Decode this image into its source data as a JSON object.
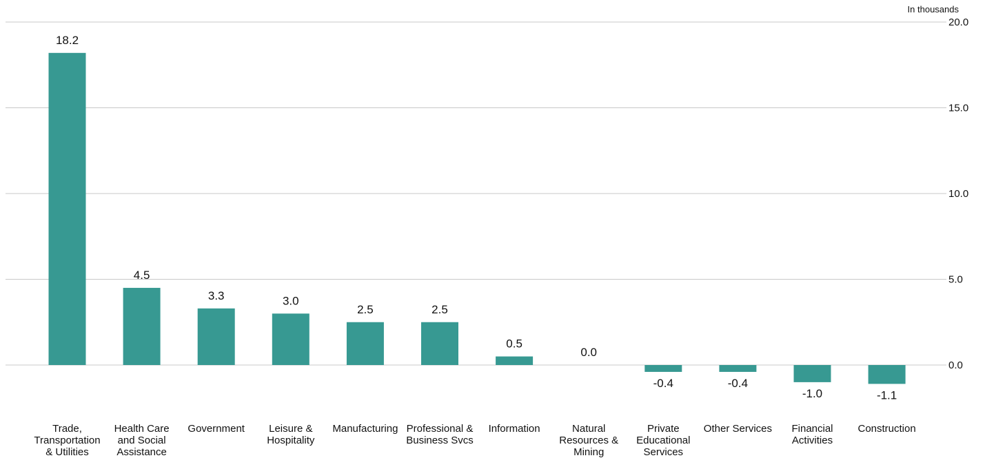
{
  "chart_data": {
    "type": "bar",
    "unit_label": "In thousands",
    "categories": [
      "Trade, Transportation & Utilities",
      "Health Care and Social Assistance",
      "Government",
      "Leisure & Hospitality",
      "Manufacturing",
      "Professional & Business Svcs",
      "Information",
      "Natural Resources & Mining",
      "Private Educational Services",
      "Other Services",
      "Financial Activities",
      "Construction"
    ],
    "category_lines": [
      [
        "Trade,",
        "Transportation",
        "& Utilities"
      ],
      [
        "Health Care",
        "and Social",
        "Assistance"
      ],
      [
        "Government"
      ],
      [
        "Leisure &",
        "Hospitality"
      ],
      [
        "Manufacturing"
      ],
      [
        "Professional &",
        "Business Svcs"
      ],
      [
        "Information"
      ],
      [
        "Natural",
        "Resources &",
        "Mining"
      ],
      [
        "Private",
        "Educational",
        "Services"
      ],
      [
        "Other Services"
      ],
      [
        "Financial",
        "Activities"
      ],
      [
        "Construction"
      ]
    ],
    "values": [
      18.2,
      4.5,
      3.3,
      3.0,
      2.5,
      2.5,
      0.5,
      0.0,
      -0.4,
      -0.4,
      -1.0,
      -1.1
    ],
    "value_labels": [
      "18.2",
      "4.5",
      "3.3",
      "3.0",
      "2.5",
      "2.5",
      "0.5",
      "0.0",
      "-0.4",
      "-0.4",
      "-1.0",
      "-1.1"
    ],
    "yticks": [
      0,
      5,
      10,
      15,
      20
    ],
    "ytick_labels": [
      "0.0",
      "5.0",
      "10.0",
      "15.0",
      "20.0"
    ],
    "ylim": [
      -2.5,
      20
    ],
    "y_axis_side": "right",
    "grid": true,
    "bar_color": "#379992"
  }
}
